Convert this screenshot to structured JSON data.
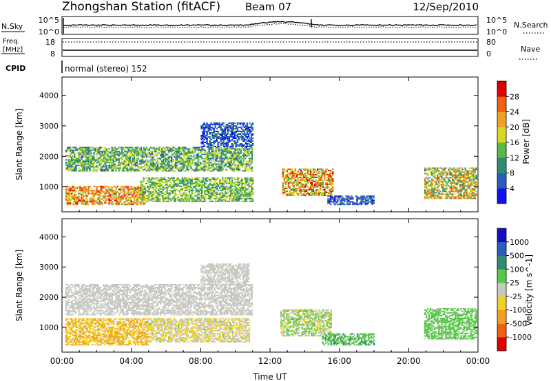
{
  "header": {
    "station": "Zhongshan Station (fitACF)",
    "beam": "Beam 07",
    "date": "12/Sep/2010"
  },
  "top_panels": {
    "sky_left_label": "N.Sky",
    "sky_left_ticks": [
      "10^5",
      "10^0"
    ],
    "sky_right_ticks": [
      "10^5",
      "10^0"
    ],
    "sky_right_label": "N.Search",
    "freq_label_line1": "Freq.",
    "freq_label_line2": "[MHz]",
    "freq_left_ticks": [
      "18",
      "8"
    ],
    "freq_right_ticks": [
      "80",
      "0"
    ],
    "nave_label": "Nave",
    "cpid_label": "CPID",
    "cpid_text": "normal (stereo) 152"
  },
  "legend_styles": {
    "solid": "solid",
    "dotted": "dotted"
  },
  "colors": {
    "power_scale": [
      "#1010f0",
      "#2a5cbc",
      "#2f8c72",
      "#58b848",
      "#d8d820",
      "#f0a020",
      "#f06010",
      "#e00000"
    ],
    "velocity_scale": [
      "#e00000",
      "#f06010",
      "#f0a020",
      "#f0d020",
      "#c8c8c0",
      "#58c848",
      "#2f8c72",
      "#2a5cbc",
      "#1010c0"
    ]
  },
  "chart_data": [
    {
      "type": "heatmap",
      "name_key": "power",
      "xlabel": "",
      "ylabel": "Slant Range [km]",
      "x_ticks": [
        "00:00",
        "04:00",
        "08:00",
        "12:00",
        "16:00",
        "20:00",
        "00:00"
      ],
      "y_ticks": [
        1000,
        2000,
        3000,
        4000
      ],
      "xlim_hours": [
        0,
        24
      ],
      "ylim_km": [
        180,
        4600
      ],
      "colorbar_label": "Power [dB]",
      "colorbar_ticks": [
        "4",
        "8",
        "12",
        "16",
        "20",
        "24",
        "28"
      ],
      "colorbar_range": [
        0,
        32
      ],
      "regions": [
        {
          "t0": 0.2,
          "t1": 4.8,
          "r0": 400,
          "r1": 1000,
          "v0": 14,
          "v1": 30
        },
        {
          "t0": 4.5,
          "t1": 11.0,
          "r0": 500,
          "r1": 1300,
          "v0": 8,
          "v1": 20
        },
        {
          "t0": 0.2,
          "t1": 11.0,
          "r0": 1500,
          "r1": 2300,
          "v0": 6,
          "v1": 20
        },
        {
          "t0": 8.0,
          "t1": 11.0,
          "r0": 2300,
          "r1": 3100,
          "v0": 2,
          "v1": 10
        },
        {
          "t0": 12.7,
          "t1": 15.6,
          "r0": 700,
          "r1": 1600,
          "v0": 12,
          "v1": 30
        },
        {
          "t0": 15.3,
          "t1": 18.0,
          "r0": 400,
          "r1": 700,
          "v0": 2,
          "v1": 10
        },
        {
          "t0": 20.9,
          "t1": 23.9,
          "r0": 600,
          "r1": 1600,
          "v0": 8,
          "v1": 28
        }
      ]
    },
    {
      "type": "heatmap",
      "name_key": "velocity",
      "xlabel": "Time UT",
      "ylabel": "Slant Range [km]",
      "x_ticks": [
        "00:00",
        "04:00",
        "08:00",
        "12:00",
        "16:00",
        "20:00",
        "00:00"
      ],
      "y_ticks": [
        1000,
        2000,
        3000,
        4000
      ],
      "xlim_hours": [
        0,
        24
      ],
      "ylim_km": [
        180,
        4600
      ],
      "colorbar_label": "Velocity [m s^-1]",
      "colorbar_ticks": [
        "-1000",
        "-500",
        "-100",
        "-25",
        "25",
        "100",
        "500",
        "1000"
      ],
      "colorbar_range": [
        -1200,
        1200
      ],
      "regions": [
        {
          "t0": 0.2,
          "t1": 5.0,
          "r0": 400,
          "r1": 1300,
          "v0": -600,
          "v1": -100
        },
        {
          "t0": 5.0,
          "t1": 10.8,
          "r0": 500,
          "r1": 1300,
          "v0": -400,
          "v1": 150
        },
        {
          "t0": 0.2,
          "t1": 11.0,
          "r0": 1400,
          "r1": 2400,
          "v0": -25,
          "v1": 25
        },
        {
          "t0": 8.0,
          "t1": 10.8,
          "r0": 2400,
          "r1": 3100,
          "v0": -25,
          "v1": 25
        },
        {
          "t0": 12.6,
          "t1": 15.5,
          "r0": 700,
          "r1": 1600,
          "v0": -300,
          "v1": 400
        },
        {
          "t0": 15.0,
          "t1": 18.0,
          "r0": 400,
          "r1": 800,
          "v0": 100,
          "v1": 500
        },
        {
          "t0": 20.9,
          "t1": 23.9,
          "r0": 600,
          "r1": 1600,
          "v0": 100,
          "v1": 400
        }
      ]
    }
  ]
}
